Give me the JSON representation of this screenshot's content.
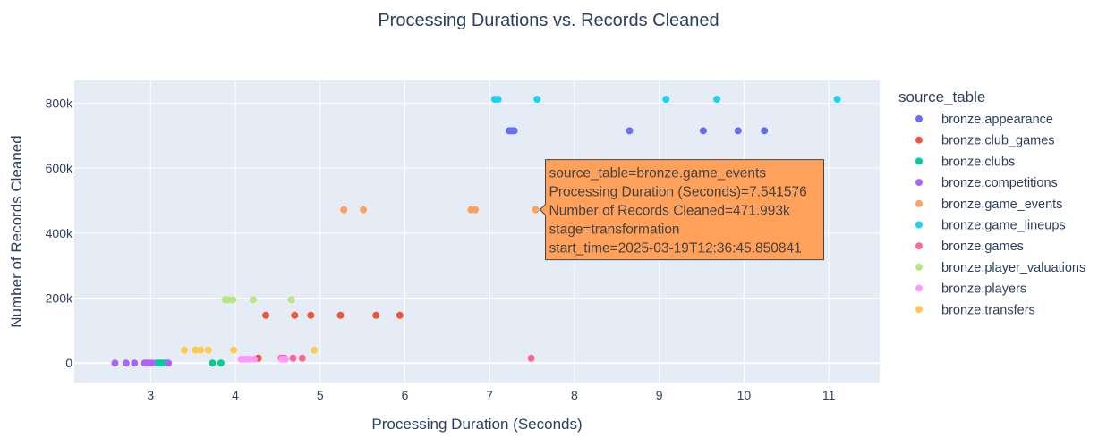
{
  "chart_data": {
    "type": "scatter",
    "title": "Processing Durations vs. Records Cleaned",
    "xlabel": "Processing Duration (Seconds)",
    "ylabel": "Number of Records Cleaned",
    "xlim": [
      2.1,
      11.6
    ],
    "ylim": [
      -60000,
      870000
    ],
    "x_ticks": [
      3,
      4,
      5,
      6,
      7,
      8,
      9,
      10,
      11
    ],
    "y_ticks": [
      0,
      200000,
      400000,
      600000,
      800000
    ],
    "y_tick_labels": [
      "0",
      "200k",
      "400k",
      "600k",
      "800k"
    ],
    "grid": true,
    "legend": {
      "title": "source_table",
      "placement": "right"
    },
    "series": [
      {
        "name": "bronze.appearance",
        "color": "#636efa",
        "x": [
          7.23,
          7.26,
          7.29,
          8.65,
          9.52,
          9.93,
          10.24
        ],
        "y": [
          715000,
          715000,
          715000,
          715000,
          715000,
          715000,
          715000
        ]
      },
      {
        "name": "bronze.club_games",
        "color": "#ef553b",
        "x": [
          4.27,
          4.36,
          4.7,
          4.89,
          5.24,
          5.66,
          5.94
        ],
        "y": [
          15000,
          147000,
          147000,
          147000,
          147000,
          147000,
          147000
        ]
      },
      {
        "name": "bronze.clubs",
        "color": "#00cc96",
        "x": [
          3.07,
          3.1,
          3.13,
          3.16,
          3.19,
          3.73,
          3.83
        ],
        "y": [
          0,
          0,
          0,
          0,
          0,
          0,
          0
        ]
      },
      {
        "name": "bronze.competitions",
        "color": "#ab63fa",
        "x": [
          2.58,
          2.71,
          2.81,
          2.93,
          2.96,
          2.99,
          3.02,
          3.21
        ],
        "y": [
          0,
          0,
          0,
          0,
          0,
          0,
          0,
          0
        ]
      },
      {
        "name": "bronze.game_events",
        "color": "#ffa15a",
        "x": [
          5.28,
          5.51,
          6.78,
          6.83,
          7.541576
        ],
        "y": [
          471993,
          471993,
          471993,
          471993,
          471993
        ]
      },
      {
        "name": "bronze.game_lineups",
        "color": "#19d3f3",
        "x": [
          7.06,
          7.1,
          7.56,
          9.08,
          9.68,
          11.1
        ],
        "y": [
          812000,
          812000,
          812000,
          812000,
          812000,
          812000
        ]
      },
      {
        "name": "bronze.games",
        "color": "#ff6692",
        "x": [
          4.54,
          4.58,
          4.68,
          4.79,
          7.49
        ],
        "y": [
          15000,
          15000,
          15000,
          15000,
          15000
        ]
      },
      {
        "name": "bronze.player_valuations",
        "color": "#b6e880",
        "x": [
          3.88,
          3.92,
          3.97,
          4.21,
          4.66
        ],
        "y": [
          195000,
          195000,
          195000,
          195000,
          195000
        ]
      },
      {
        "name": "bronze.players",
        "color": "#ff97ff",
        "x": [
          4.07,
          4.12,
          4.16,
          4.22,
          4.55,
          4.59
        ],
        "y": [
          12000,
          12000,
          12000,
          12000,
          12000,
          12000
        ]
      },
      {
        "name": "bronze.transfers",
        "color": "#fecb52",
        "x": [
          3.4,
          3.53,
          3.59,
          3.68,
          3.98,
          4.93
        ],
        "y": [
          40000,
          40000,
          40000,
          40000,
          40000,
          40000
        ]
      }
    ],
    "hover_label": {
      "color": "#ffa15a",
      "lines": [
        "source_table=bronze.game_events",
        "Processing Duration (Seconds)=7.541576",
        "Number of Records Cleaned=471.993k",
        "stage=transformation",
        "start_time=2025-03-19T12:36:45.850841"
      ]
    }
  }
}
